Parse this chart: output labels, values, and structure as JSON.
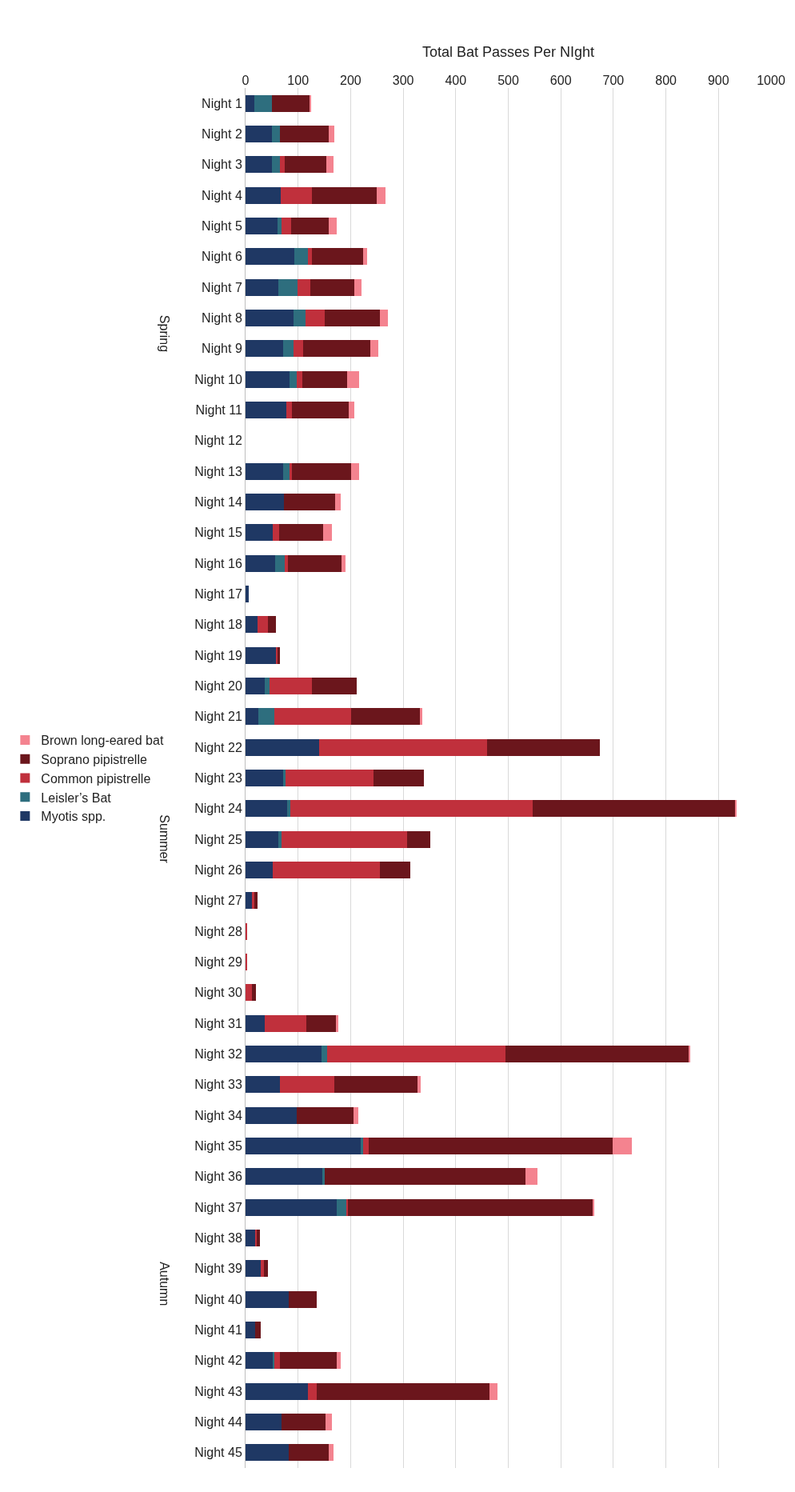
{
  "chart_data": {
    "type": "bar",
    "orientation": "horizontal",
    "stacked": true,
    "xlabel": "Total Bat Passes Per NIght",
    "categories": [
      "Night 1",
      "Night 2",
      "Night 3",
      "Night 4",
      "Night 5",
      "Night 6",
      "Night 7",
      "Night 8",
      "Night 9",
      "Night 10",
      "Night 11",
      "Night 12",
      "Night 13",
      "Night 14",
      "Night 15",
      "Night 16",
      "Night 17",
      "Night 18",
      "Night 19",
      "Night 20",
      "Night 21",
      "Night 22",
      "Night 23",
      "Night 24",
      "Night 25",
      "Night 26",
      "Night 27",
      "Night 28",
      "Night 29",
      "Night 30",
      "Night 31",
      "Night 32",
      "Night 33",
      "Night 34",
      "Night 35",
      "Night 36",
      "Night 37",
      "Night 38",
      "Night 39",
      "Night 40",
      "Night 41",
      "Night 42",
      "Night 43",
      "Night 44",
      "Night 45"
    ],
    "series": [
      {
        "name": "Myotis spp.",
        "color": "#1f3864",
        "values": [
          16,
          50,
          50,
          67,
          61,
          93,
          62,
          92,
          72,
          83,
          77,
          0,
          72,
          73,
          51,
          56,
          6,
          23,
          58,
          36,
          25,
          140,
          72,
          79,
          62,
          52,
          13,
          0,
          0,
          0,
          36,
          144,
          65,
          98,
          220,
          146,
          173,
          18,
          29,
          82,
          18,
          52,
          119,
          68,
          82
        ]
      },
      {
        "name": "Leisler’s Bat",
        "color": "#2e6e7e",
        "values": [
          34,
          15,
          15,
          0,
          8,
          25,
          37,
          22,
          19,
          15,
          0,
          0,
          12,
          0,
          0,
          18,
          0,
          0,
          0,
          10,
          30,
          0,
          4,
          6,
          7,
          0,
          0,
          0,
          0,
          0,
          0,
          12,
          0,
          0,
          3,
          4,
          19,
          0,
          0,
          0,
          0,
          3,
          0,
          0,
          0
        ]
      },
      {
        "name": "Common pipistrelle",
        "color": "#c0303c",
        "values": [
          0,
          0,
          10,
          60,
          18,
          9,
          24,
          37,
          18,
          10,
          11,
          0,
          4,
          0,
          13,
          6,
          0,
          19,
          3,
          81,
          146,
          319,
          168,
          462,
          238,
          203,
          3,
          2,
          3,
          12,
          79,
          339,
          104,
          0,
          11,
          0,
          3,
          4,
          6,
          0,
          0,
          10,
          17,
          0,
          0
        ]
      },
      {
        "name": "Soprano pipistrelle",
        "color": "#6b161c",
        "values": [
          72,
          93,
          79,
          123,
          72,
          97,
          84,
          104,
          129,
          85,
          109,
          0,
          113,
          97,
          83,
          102,
          0,
          16,
          5,
          84,
          132,
          215,
          96,
          385,
          44,
          59,
          7,
          0,
          0,
          8,
          58,
          348,
          158,
          107,
          465,
          383,
          465,
          5,
          7,
          53,
          11,
          108,
          328,
          84,
          76
        ]
      },
      {
        "name": "Brown long-eared bat",
        "color": "#f4838f",
        "values": [
          2,
          11,
          14,
          16,
          14,
          8,
          14,
          16,
          15,
          23,
          10,
          0,
          15,
          11,
          18,
          8,
          0,
          0,
          0,
          0,
          3,
          0,
          0,
          2,
          0,
          0,
          0,
          0,
          0,
          0,
          3,
          4,
          6,
          9,
          36,
          23,
          4,
          0,
          0,
          0,
          0,
          8,
          15,
          13,
          10
        ]
      }
    ],
    "xlim": [
      0,
      1000
    ],
    "xticks": [
      0,
      100,
      200,
      300,
      400,
      500,
      600,
      700,
      800,
      900,
      1000
    ],
    "grid": "x",
    "legend": "left",
    "annotations": [
      "Spring",
      "Summer",
      "Autumn"
    ]
  }
}
